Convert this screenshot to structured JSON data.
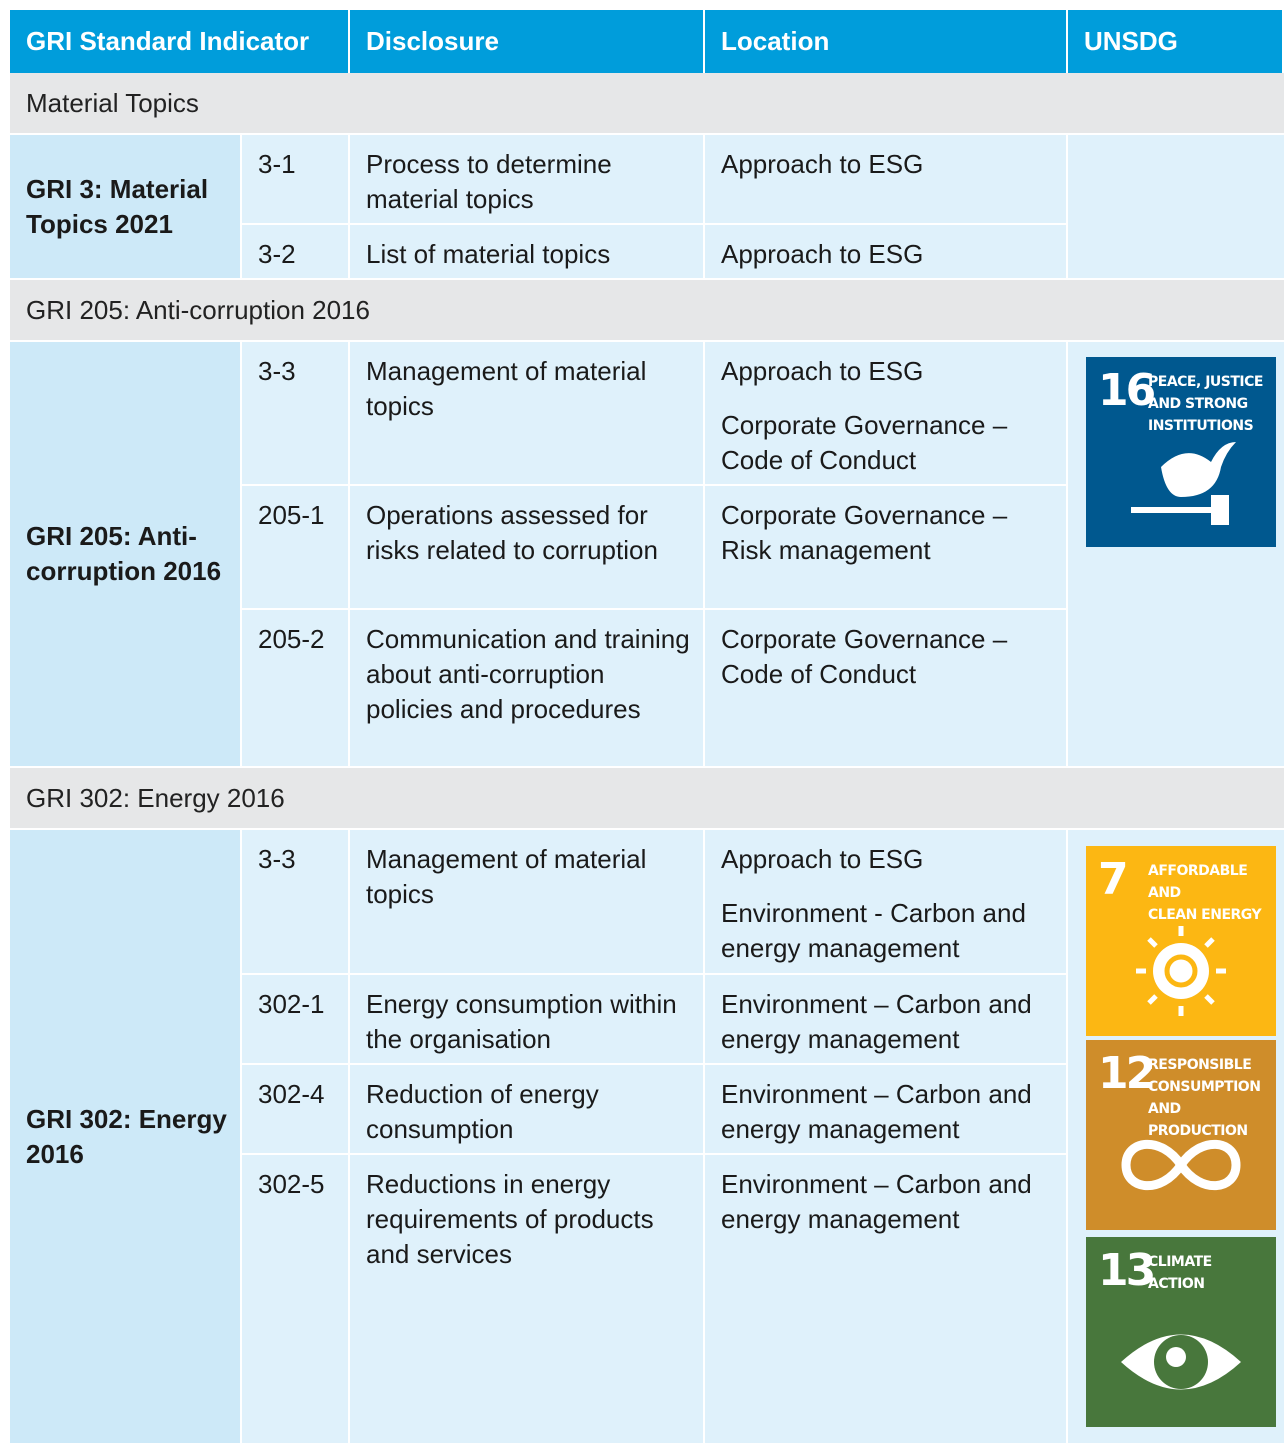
{
  "header": [
    "GRI Standard Indicator",
    "Disclosure",
    "Location",
    "UNSDG"
  ],
  "sections": [
    {
      "title": "Material Topics",
      "indicator": "GRI 3: Material Topics 2021",
      "rows": [
        {
          "code": "3-1",
          "disclosure": "Process to determine material topics",
          "location": [
            "Approach to ESG"
          ]
        },
        {
          "code": "3-2",
          "disclosure": "List of material topics",
          "location": [
            "Approach to ESG"
          ]
        }
      ],
      "sdgs": []
    },
    {
      "title": "GRI 205: Anti-corruption 2016",
      "indicator": "GRI 205: Anti-corruption 2016",
      "rows": [
        {
          "code": "3-3",
          "disclosure": "Management of material topics",
          "location": [
            "Approach to ESG",
            "Corporate Governance – Code of Conduct"
          ]
        },
        {
          "code": "205-1",
          "disclosure": "Operations assessed for risks related to corruption",
          "location": [
            "Corporate Governance – Risk management"
          ]
        },
        {
          "code": "205-2",
          "disclosure": "Communication and training about anti-corruption policies and procedures",
          "location": [
            "Corporate Governance – Code of Conduct"
          ]
        }
      ],
      "sdgs": [
        {
          "number": "16",
          "label": [
            "PEACE, JUSTICE",
            "AND STRONG",
            "INSTITUTIONS"
          ],
          "color": "#00588f"
        }
      ]
    },
    {
      "title": "GRI 302: Energy 2016",
      "indicator": "GRI 302: Energy 2016",
      "rows": [
        {
          "code": "3-3",
          "disclosure": "Management of material topics",
          "location": [
            "Approach to ESG",
            "Environment - Carbon and energy management"
          ]
        },
        {
          "code": "302-1",
          "disclosure": "Energy consumption within the organisation",
          "location": [
            "Environment – Carbon and energy management"
          ]
        },
        {
          "code": "302-4",
          "disclosure": "Reduction of energy consumption",
          "location": [
            "Environment – Carbon and energy management"
          ]
        },
        {
          "code": "302-5",
          "disclosure": "Reductions in energy requirements of products and services",
          "location": [
            "Environment – Carbon and energy management"
          ]
        }
      ],
      "sdgs": [
        {
          "number": "7",
          "label": [
            "AFFORDABLE AND",
            "CLEAN ENERGY"
          ],
          "color": "#fcb713"
        },
        {
          "number": "12",
          "label": [
            "RESPONSIBLE",
            "CONSUMPTION",
            "AND PRODUCTION"
          ],
          "color": "#cf8d2a"
        },
        {
          "number": "13",
          "label": [
            "CLIMATE",
            "ACTION"
          ],
          "color": "#48773c"
        }
      ]
    }
  ]
}
